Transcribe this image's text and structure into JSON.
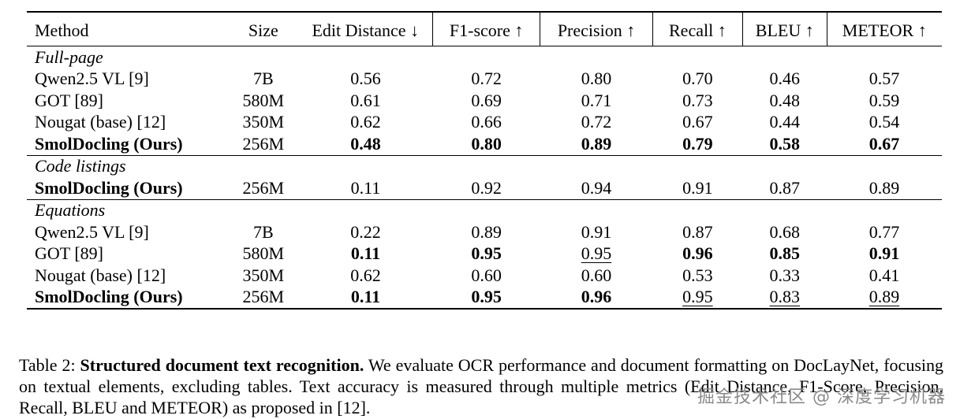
{
  "table": {
    "headers": {
      "method": "Method",
      "size": "Size",
      "edit_distance": "Edit Distance ↓",
      "f1": "F1-score ↑",
      "precision": "Precision ↑",
      "recall": "Recall ↑",
      "bleu": "BLEU ↑",
      "meteor": "METEOR ↑"
    },
    "groups": [
      {
        "label": "Full-page",
        "rows": [
          {
            "method": "Qwen2.5 VL [9]",
            "size": "7B",
            "edit": "0.56",
            "f1": "0.72",
            "precision": "0.80",
            "recall": "0.70",
            "bleu": "0.46",
            "meteor": "0.57"
          },
          {
            "method": "GOT [89]",
            "size": "580M",
            "edit": "0.61",
            "f1": "0.69",
            "precision": "0.71",
            "recall": "0.73",
            "bleu": "0.48",
            "meteor": "0.59"
          },
          {
            "method": "Nougat (base) [12]",
            "size": "350M",
            "edit": "0.62",
            "f1": "0.66",
            "precision": "0.72",
            "recall": "0.67",
            "bleu": "0.44",
            "meteor": "0.54"
          },
          {
            "method": "SmolDocling (Ours)",
            "size": "256M",
            "edit": "0.48",
            "f1": "0.80",
            "precision": "0.89",
            "recall": "0.79",
            "bleu": "0.58",
            "meteor": "0.67"
          }
        ]
      },
      {
        "label": "Code listings",
        "rows": [
          {
            "method": "SmolDocling (Ours)",
            "size": "256M",
            "edit": "0.11",
            "f1": "0.92",
            "precision": "0.94",
            "recall": "0.91",
            "bleu": "0.87",
            "meteor": "0.89"
          }
        ]
      },
      {
        "label": "Equations",
        "rows": [
          {
            "method": "Qwen2.5 VL [9]",
            "size": "7B",
            "edit": "0.22",
            "f1": "0.89",
            "precision": "0.91",
            "recall": "0.87",
            "bleu": "0.68",
            "meteor": "0.77"
          },
          {
            "method": "GOT [89]",
            "size": "580M",
            "edit": "0.11",
            "f1": "0.95",
            "precision": "0.95",
            "recall": "0.96",
            "bleu": "0.85",
            "meteor": "0.91"
          },
          {
            "method": "Nougat (base) [12]",
            "size": "350M",
            "edit": "0.62",
            "f1": "0.60",
            "precision": "0.60",
            "recall": "0.53",
            "bleu": "0.33",
            "meteor": "0.41"
          },
          {
            "method": "SmolDocling (Ours)",
            "size": "256M",
            "edit": "0.11",
            "f1": "0.95",
            "precision": "0.96",
            "recall": "0.95",
            "bleu": "0.83",
            "meteor": "0.89"
          }
        ]
      }
    ]
  },
  "caption": {
    "label": "Table 2: ",
    "title": "Structured document text recognition.",
    "body": " We evaluate OCR performance and document formatting on DocLayNet, focusing on textual elements, excluding tables. Text accuracy is measured through multiple metrics (Edit Distance, F1-Score, Precision, Recall, BLEU and METEOR) as proposed in [12]."
  },
  "watermark": "掘金技术社区 @ 深度学习机器"
}
